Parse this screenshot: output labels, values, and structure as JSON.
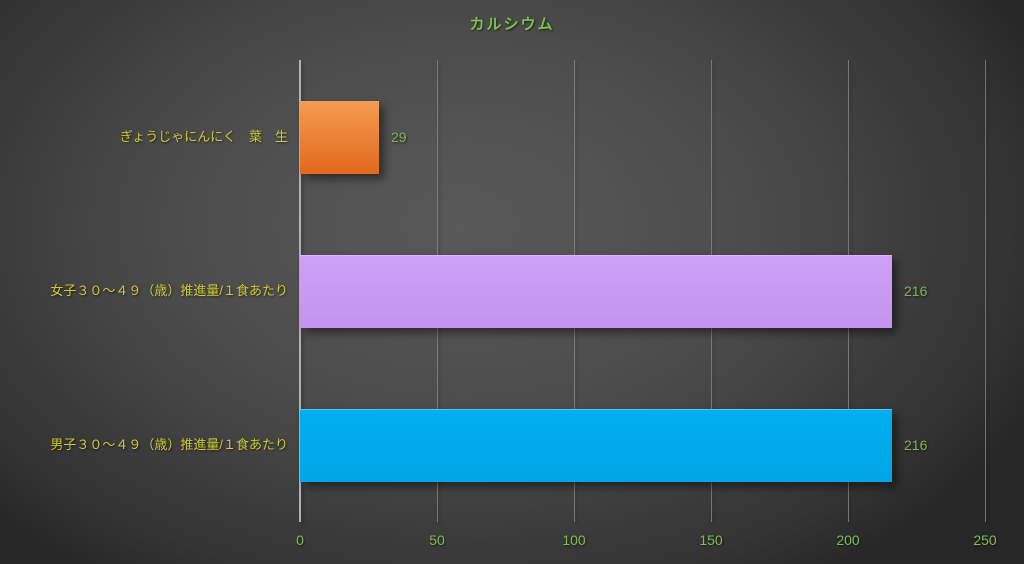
{
  "chart_data": {
    "type": "bar",
    "orientation": "horizontal",
    "title": "カルシウム",
    "categories": [
      "ぎょうじゃにんにく　葉　生",
      "女子３０～４９（歳）推進量/１食あたり",
      "男子３０～４９（歳）推進量/１食あたり"
    ],
    "values": [
      29,
      216,
      216
    ],
    "data_labels": [
      "29",
      "216",
      "216"
    ],
    "xlabel": "",
    "ylabel": "",
    "xlim": [
      0,
      250
    ],
    "x_ticks": [
      0,
      50,
      100,
      150,
      200,
      250
    ],
    "grid": true,
    "legend": "none",
    "bar_colors": [
      {
        "top": "#F49B51",
        "bottom": "#E1691B"
      },
      {
        "top": "#CDA0F8",
        "bottom": "#C493EE"
      },
      {
        "top": "#00AFF0",
        "bottom": "#00A6E6"
      }
    ],
    "colors": {
      "background_center": "#595959",
      "background_edge": "#272727",
      "title_text": "#7CC24F",
      "category_text": "#CBCB33",
      "value_text": "#85B351",
      "tick_text": "#7CBE53",
      "axis_line": "#B2B2B2",
      "gridline": "#8A8A8A"
    }
  }
}
